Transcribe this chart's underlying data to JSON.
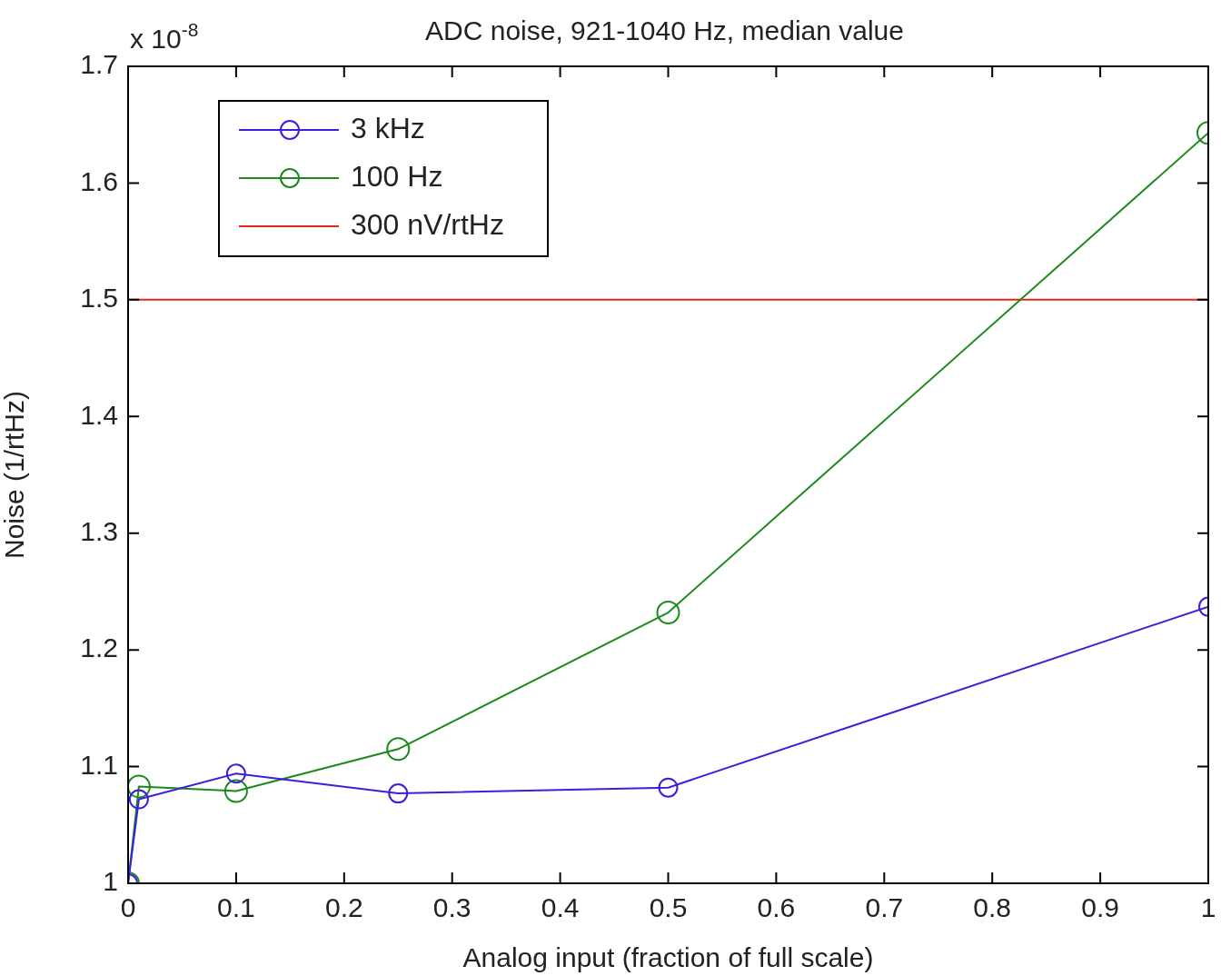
{
  "chart_data": {
    "type": "line",
    "title": "ADC noise, 921-1040 Hz, median value",
    "xlabel": "Analog input (fraction of full scale)",
    "ylabel": "Noise (1/rtHz)",
    "annotations": [
      "x 10$^{-8}$"
    ],
    "x": [
      0,
      0.01,
      0.1,
      0.25,
      0.5,
      1
    ],
    "series": [
      {
        "name": "3 kHz",
        "color": "#3b1fe0",
        "values": [
          1.0,
          1.072,
          1.094,
          1.077,
          1.082,
          1.237
        ]
      },
      {
        "name": "100 Hz",
        "color": "#1a8a1a",
        "values": [
          1.0,
          1.083,
          1.079,
          1.115,
          1.232,
          1.643
        ]
      }
    ],
    "ref_lines": [
      {
        "axis": "y",
        "value": 1.5,
        "label": "300 nV/rtHz",
        "color": "#e8261c",
        "line_style": "solid"
      }
    ],
    "xlim": [
      0,
      1
    ],
    "xticks": [
      0,
      0.1,
      0.2,
      0.3,
      0.4,
      0.5,
      0.6,
      0.7,
      0.8,
      0.9,
      1
    ],
    "ylim": [
      1,
      1.7
    ],
    "yticks": [
      1,
      1.1,
      1.2,
      1.3,
      1.4,
      1.5,
      1.6,
      1.7
    ],
    "marker": "circle",
    "line_style": "solid",
    "legend": "top left",
    "grid": false
  }
}
